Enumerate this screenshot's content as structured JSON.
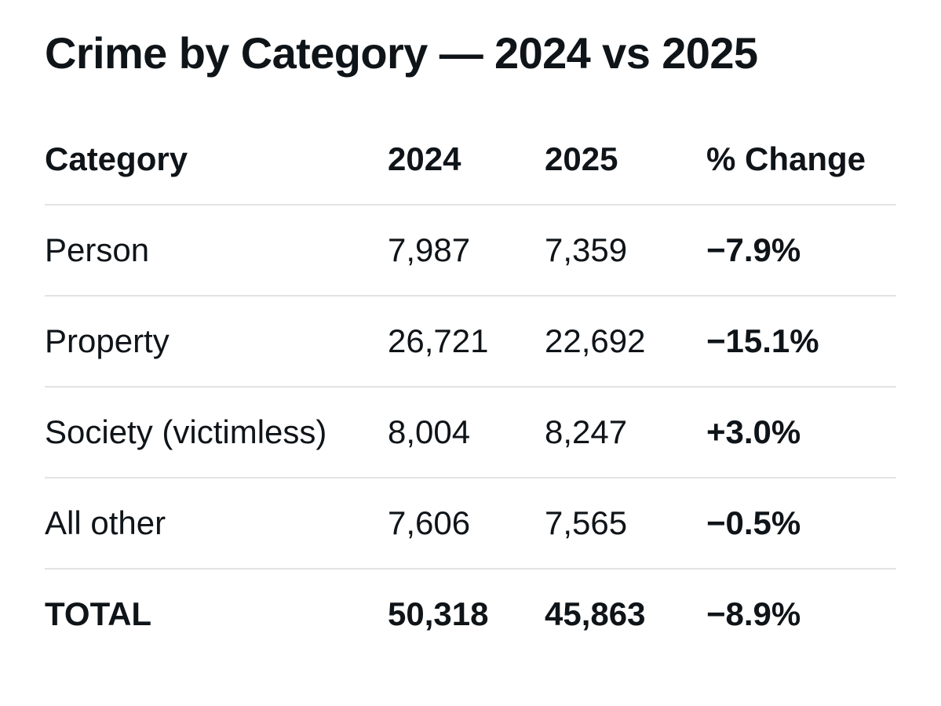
{
  "title": "Crime by Category — 2024 vs 2025",
  "table": {
    "headers": [
      "Category",
      "2024",
      "2025",
      "% Change"
    ],
    "rows": [
      {
        "category": "Person",
        "y2024": "7,987",
        "y2025": "7,359",
        "change": "−7.9%"
      },
      {
        "category": "Property",
        "y2024": "26,721",
        "y2025": "22,692",
        "change": "−15.1%"
      },
      {
        "category": "Society (victimless)",
        "y2024": "8,004",
        "y2025": "8,247",
        "change": "+3.0%"
      },
      {
        "category": "All other",
        "y2024": "7,606",
        "y2025": "7,565",
        "change": "−0.5%"
      }
    ],
    "total": {
      "category": "TOTAL",
      "y2024": "50,318",
      "y2025": "45,863",
      "change": "−8.9%"
    }
  },
  "chart_data": {
    "type": "table",
    "title": "Crime by Category — 2024 vs 2025",
    "columns": [
      "Category",
      "2024",
      "2025",
      "% Change"
    ],
    "categories": [
      "Person",
      "Property",
      "Society (victimless)",
      "All other",
      "TOTAL"
    ],
    "series": [
      {
        "name": "2024",
        "values": [
          7987,
          26721,
          8004,
          7606,
          50318
        ]
      },
      {
        "name": "2025",
        "values": [
          7359,
          22692,
          8247,
          7565,
          45863
        ]
      },
      {
        "name": "% Change",
        "values": [
          -7.9,
          -15.1,
          3.0,
          -0.5,
          -8.9
        ]
      }
    ]
  },
  "colors": {
    "text": "#0f1419",
    "divider": "#e3e3e3",
    "background": "#ffffff"
  }
}
